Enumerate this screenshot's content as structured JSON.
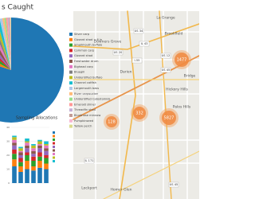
{
  "chart_data": [
    {
      "type": "pie",
      "title": "s Caught",
      "categories": [
        "Silver carp",
        "Gizzard shad < 6 in",
        "Smallmouth buffalo",
        "Common carp",
        "Gizzard shad",
        "Freshwater drum",
        "Bighead carp",
        "Bluegill",
        "Unidentified buffalo",
        "Channel catfish",
        "Largemouth bass",
        "River carpsucker",
        "Unidentified Catostomids",
        "Emerald shiner",
        "Threadfin shad",
        "Bluntnose minnow",
        "Pumpkinseed",
        "Yellow perch"
      ],
      "values": [
        80,
        3,
        3,
        2,
        2,
        2,
        1.5,
        1,
        1,
        1,
        0.8,
        0.6,
        0.5,
        0.5,
        0.4,
        0.3,
        0.2,
        0.2
      ],
      "colors": [
        "#1f77b4",
        "#ff7f0e",
        "#2ca02c",
        "#d62728",
        "#9467bd",
        "#8c564b",
        "#e377c2",
        "#7f7f7f",
        "#bcbd22",
        "#17becf",
        "#aec7e8",
        "#ffbb78",
        "#98df8a",
        "#ff9896",
        "#c5b0d5",
        "#c49c94",
        "#f7b6d2",
        "#dbdb8d"
      ]
    },
    {
      "type": "bar",
      "title": "Sampling Allocations",
      "categories": [
        null,
        null,
        null,
        null,
        null,
        null
      ],
      "series": [
        {
          "color": "#1f77b4",
          "values": [
            12,
            8,
            10,
            9,
            11,
            10
          ]
        },
        {
          "color": "#ff7f0e",
          "values": [
            5,
            4,
            6,
            3,
            5,
            4
          ]
        },
        {
          "color": "#2ca02c",
          "values": [
            4,
            3,
            4,
            4,
            3,
            4
          ]
        },
        {
          "color": "#d62728",
          "values": [
            3,
            3,
            2,
            3,
            3,
            2
          ]
        },
        {
          "color": "#9467bd",
          "values": [
            3,
            2,
            3,
            2,
            3,
            3
          ]
        },
        {
          "color": "#8c564b",
          "values": [
            2,
            2,
            2,
            2,
            2,
            2
          ]
        },
        {
          "color": "#e377c2",
          "values": [
            2,
            1,
            2,
            2,
            1,
            2
          ]
        },
        {
          "color": "#bcbd22",
          "values": [
            2,
            2,
            1,
            2,
            2,
            1
          ]
        },
        {
          "color": "#17becf",
          "values": [
            1,
            1,
            2,
            1,
            1,
            2
          ]
        }
      ],
      "ylim": [
        0,
        40
      ],
      "yticks": [
        0,
        10,
        20,
        30,
        40
      ]
    }
  ],
  "map": {
    "places": [
      "Downers Grove",
      "Darien",
      "La Grange",
      "Brookfield",
      "Bridge",
      "Hickory Hills",
      "Palos Hills",
      "Homer Glen",
      "Lockport"
    ],
    "roads": [
      "US 34",
      "IL 43",
      "US 12",
      "US 20",
      "US 45",
      "IL 171",
      "US 45",
      "I-55"
    ],
    "clusters": [
      "1477",
      "5827",
      "332",
      "128"
    ]
  }
}
